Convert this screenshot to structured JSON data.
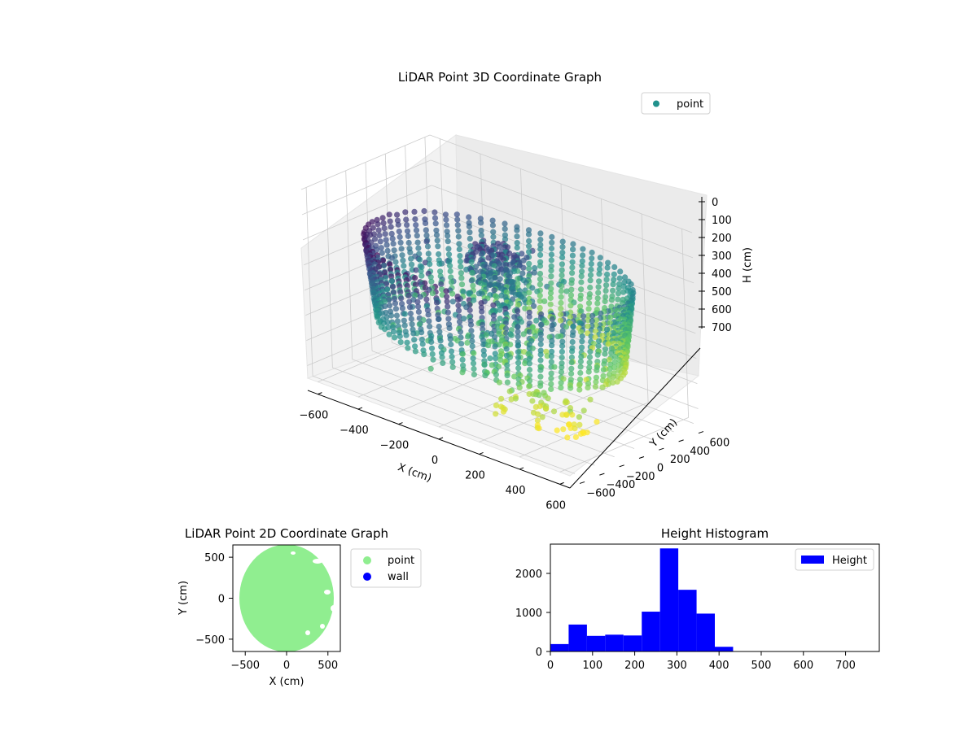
{
  "chart_data": [
    {
      "type": "scatter",
      "title": "LiDAR Point 3D Coordinate Graph",
      "projection": "3d",
      "colormap": "viridis",
      "xlabel": "X (cm)",
      "ylabel": "Y (cm)",
      "zlabel": "H (cm)",
      "xlim": [
        -650,
        650
      ],
      "ylim": [
        -650,
        650
      ],
      "zlim": [
        750,
        0
      ],
      "xticks": [
        "−600",
        "−400",
        "−200",
        "0",
        "200",
        "400",
        "600"
      ],
      "yticks": [
        "−600",
        "−400",
        "−200",
        "0",
        "200",
        "400",
        "600"
      ],
      "zticks": [
        "0",
        "100",
        "200",
        "300",
        "400",
        "500",
        "600",
        "700"
      ],
      "zticks_values": [
        0,
        100,
        200,
        300,
        400,
        500,
        600,
        700
      ],
      "legend": {
        "entries": [
          "point"
        ],
        "location": "upper right",
        "color": "#21918c"
      },
      "series": [
        {
          "name": "point",
          "description": "ring of points around radius ~600 cm plus interior clusters"
        }
      ]
    },
    {
      "type": "scatter",
      "title": "LiDAR Point 2D Coordinate Graph",
      "xlabel": "X (cm)",
      "ylabel": "Y (cm)",
      "xlim": [
        -650,
        650
      ],
      "ylim": [
        -650,
        650
      ],
      "xticks": [
        "−500",
        "0",
        "500"
      ],
      "yticks": [
        "500",
        "0",
        "−500"
      ],
      "legend": {
        "location": "outside right",
        "entries": [
          {
            "name": "point",
            "color": "#90ee90"
          },
          {
            "name": "wall",
            "color": "#0000ff"
          }
        ]
      },
      "series": [
        {
          "name": "point",
          "shape": "disk",
          "center": [
            0,
            0
          ],
          "radius": 610,
          "color": "#90ee90"
        },
        {
          "name": "wall",
          "color": "#0000ff"
        }
      ]
    },
    {
      "type": "bar",
      "title": "Height Histogram",
      "xlim": [
        0,
        780
      ],
      "ylim": [
        0,
        2750
      ],
      "xticks": [
        "0",
        "100",
        "200",
        "300",
        "400",
        "500",
        "600",
        "700"
      ],
      "xticks_values": [
        0,
        100,
        200,
        300,
        400,
        500,
        600,
        700
      ],
      "yticks": [
        "0",
        "1000",
        "2000"
      ],
      "yticks_values": [
        0,
        1000,
        2000
      ],
      "legend": {
        "entries": [
          "Height"
        ],
        "location": "upper right",
        "color": "#0000ff"
      },
      "bin_edges": [
        0,
        43.3,
        86.7,
        130,
        173.3,
        216.7,
        260,
        303.3,
        346.7,
        390,
        433.3,
        476.7,
        520,
        563.3,
        606.7,
        650,
        693.3,
        736.7,
        780
      ],
      "series": [
        {
          "name": "Height",
          "color": "#0000ff",
          "values": [
            190,
            690,
            400,
            430,
            410,
            1020,
            2640,
            1580,
            970,
            120,
            0,
            0,
            0,
            0,
            0,
            0,
            0,
            0
          ]
        }
      ]
    }
  ]
}
